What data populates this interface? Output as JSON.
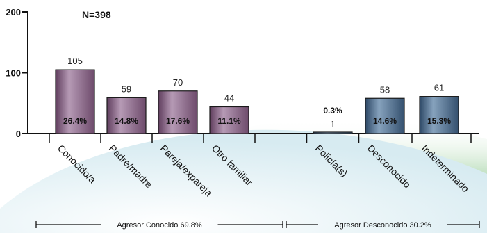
{
  "chart_data": {
    "type": "bar",
    "n_label": "N=398",
    "ylim": [
      0,
      200
    ],
    "yticks": [
      0,
      100,
      200
    ],
    "categories": [
      "Conocido/a",
      "Padre/madre",
      "Pareja/expareja",
      "Otro familiar",
      "",
      "Policía(s)",
      "Desconocido",
      "Indeterminado"
    ],
    "values": [
      105,
      59,
      70,
      44,
      null,
      1,
      58,
      61
    ],
    "percents": [
      "26.4%",
      "14.8%",
      "17.6%",
      "11.1%",
      "",
      "0.3%",
      "14.6%",
      "15.3%"
    ],
    "group_colors": {
      "known": "#7a5478",
      "unknown": "#3b5878"
    },
    "bar_groups": [
      "known",
      "known",
      "known",
      "known",
      "",
      "unknown",
      "unknown",
      "unknown"
    ],
    "groups": [
      {
        "label": "Agresor   Conocido   69.8%"
      },
      {
        "label": "Agresor   Desconocido   30.2%"
      }
    ],
    "background": {
      "green": "#4e9e5e",
      "pale_blue": "#dcedf2"
    }
  }
}
